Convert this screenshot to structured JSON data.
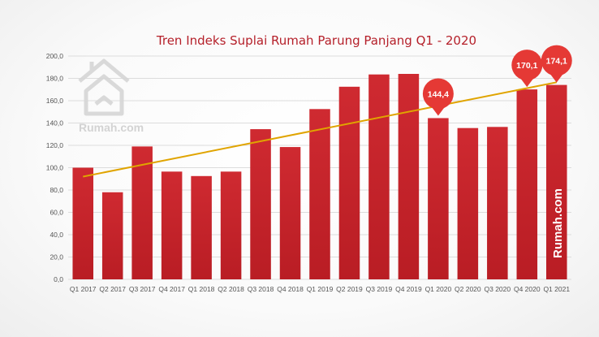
{
  "chart_data": {
    "type": "bar",
    "title": "Tren Indeks Suplai Rumah Parung Panjang Q1 - 2020",
    "xlabel": "",
    "ylabel": "",
    "ylim": [
      0,
      200
    ],
    "yticks": [
      "0,0",
      "20,0",
      "40,0",
      "60,0",
      "80,0",
      "100,0",
      "120,0",
      "140,0",
      "160,0",
      "180,0",
      "200,0"
    ],
    "categories": [
      "Q1 2017",
      "Q2 2017",
      "Q3 2017",
      "Q4 2017",
      "Q1 2018",
      "Q2 2018",
      "Q3 2018",
      "Q4 2018",
      "Q1 2019",
      "Q2 2019",
      "Q3 2019",
      "Q4 2019",
      "Q1 2020",
      "Q2 2020",
      "Q3 2020",
      "Q4 2020",
      "Q1 2021"
    ],
    "values": [
      100.0,
      78.0,
      119.0,
      96.5,
      92.5,
      96.5,
      134.5,
      118.5,
      152.5,
      172.5,
      183.5,
      184.0,
      144.4,
      135.5,
      136.5,
      170.1,
      174.1
    ],
    "trendline": {
      "start": 92.0,
      "end": 176.5
    },
    "callouts": [
      {
        "index": 12,
        "label": "144,4"
      },
      {
        "index": 15,
        "label": "170,1"
      },
      {
        "index": 16,
        "label": "174,1"
      }
    ],
    "grid": true
  },
  "watermark": {
    "label": "Rumah.com"
  },
  "side_brand": {
    "label": "Rumah.com"
  },
  "colors": {
    "bar": "#c8252c",
    "trend": "#e0a400",
    "callout": "#e53935",
    "title": "#b5202a"
  }
}
